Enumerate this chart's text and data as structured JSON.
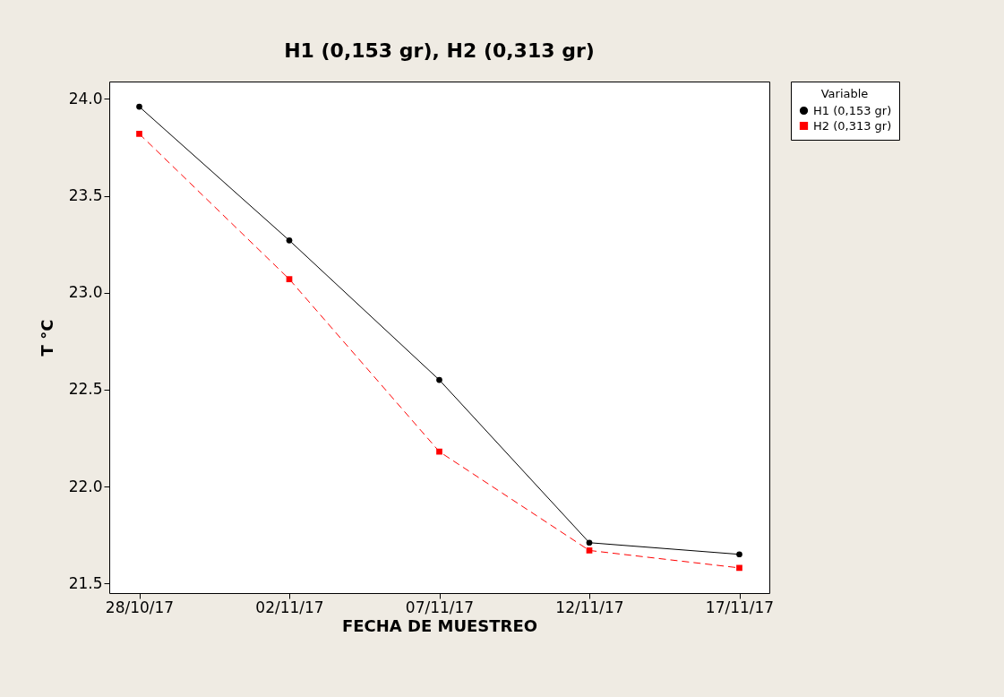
{
  "chart_data": {
    "type": "line",
    "title": "H1 (0,153 gr), H2 (0,313 gr)",
    "xlabel": "FECHA DE MUESTREO",
    "ylabel": "T °C",
    "legend_title": "Variable",
    "legend": "right",
    "grid": false,
    "categories": [
      "28/10/17",
      "02/11/17",
      "07/11/17",
      "12/11/17",
      "17/11/17"
    ],
    "ylim": [
      21.45,
      24.09
    ],
    "yticks": [
      {
        "value": 21.5,
        "label": "21.5"
      },
      {
        "value": 22,
        "label": "22.0"
      },
      {
        "value": 22.5,
        "label": "22.5"
      },
      {
        "value": 23,
        "label": "23.0"
      },
      {
        "value": 23.5,
        "label": "23.5"
      },
      {
        "value": 24,
        "label": "24.0"
      }
    ],
    "series": [
      {
        "name": "H1 (0,153 gr)",
        "color": "#000000",
        "marker": "circle",
        "line_style": "solid",
        "values": [
          23.96,
          23.27,
          22.55,
          21.71,
          21.65
        ]
      },
      {
        "name": "H2 (0,313 gr)",
        "color": "#ff0000",
        "marker": "square",
        "line_style": "dashed",
        "values": [
          23.82,
          23.07,
          22.18,
          21.67,
          21.58
        ]
      }
    ]
  }
}
